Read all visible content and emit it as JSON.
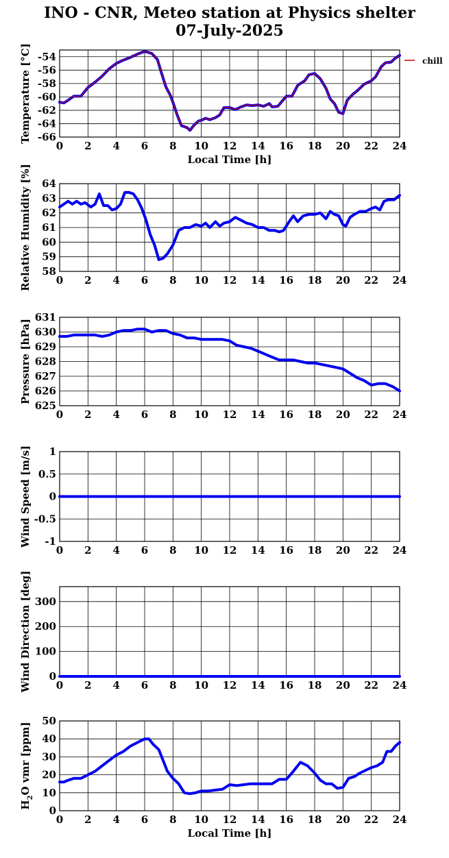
{
  "page": {
    "title_line1": "INO - CNR, Meteo station at Physics shelter",
    "title_line2": "07-July-2025"
  },
  "legend": {
    "label": "chill",
    "color": "#cc0000"
  },
  "colors": {
    "series": "#0000ee",
    "grid": "#000000"
  },
  "chart_data": [
    {
      "type": "line",
      "ylabel": "Temperature [°C]",
      "xlabel": "Local Time [h]",
      "xlim": [
        0,
        24
      ],
      "ylim": [
        -66,
        -53
      ],
      "xticks": [
        0,
        2,
        4,
        6,
        8,
        10,
        12,
        14,
        16,
        18,
        20,
        22,
        24
      ],
      "yticks": [
        -66,
        -64,
        -62,
        -60,
        -58,
        -56,
        -54
      ],
      "series": [
        {
          "x": [
            0,
            0.3,
            0.6,
            1,
            1.5,
            2,
            2.5,
            3,
            3.5,
            4,
            4.5,
            5,
            5.5,
            6,
            6.5,
            6.9,
            7.2,
            7.5,
            7.8,
            8,
            8.3,
            8.6,
            9,
            9.2,
            9.5,
            9.8,
            10,
            10.3,
            10.6,
            11,
            11.3,
            11.6,
            12,
            12.4,
            12.8,
            13.2,
            13.6,
            14,
            14.4,
            14.8,
            15,
            15.4,
            15.8,
            16,
            16.4,
            16.8,
            17,
            17.3,
            17.6,
            18,
            18.4,
            18.8,
            19.1,
            19.4,
            19.7,
            20,
            20.3,
            20.7,
            21,
            21.5,
            22,
            22.3,
            22.7,
            23,
            23.4,
            23.7,
            24
          ],
          "y": [
            -60.8,
            -60.9,
            -60.5,
            -59.9,
            -59.9,
            -58.6,
            -57.8,
            -56.9,
            -55.8,
            -55,
            -54.5,
            -54.1,
            -53.6,
            -53.2,
            -53.5,
            -54.4,
            -56.5,
            -58.5,
            -59.7,
            -60.8,
            -62.7,
            -64.3,
            -64.6,
            -65,
            -64.2,
            -63.6,
            -63.5,
            -63.2,
            -63.4,
            -63.1,
            -62.7,
            -61.6,
            -61.6,
            -61.9,
            -61.5,
            -61.2,
            -61.3,
            -61.2,
            -61.4,
            -61.0,
            -61.5,
            -61.4,
            -60.4,
            -59.9,
            -59.9,
            -58.3,
            -58,
            -57.6,
            -56.7,
            -56.5,
            -57.3,
            -58.7,
            -60.3,
            -61,
            -62.3,
            -62.5,
            -60.5,
            -59.6,
            -59.1,
            -58.1,
            -57.6,
            -57.0,
            -55.5,
            -54.9,
            -54.8,
            -54.2,
            -53.8
          ]
        }
      ]
    },
    {
      "type": "line",
      "ylabel": "Relative Humidity [%]",
      "xlabel": "",
      "xlim": [
        0,
        24
      ],
      "ylim": [
        58,
        64
      ],
      "xticks": [
        0,
        2,
        4,
        6,
        8,
        10,
        12,
        14,
        16,
        18,
        20,
        22,
        24
      ],
      "yticks": [
        58,
        59,
        60,
        61,
        62,
        63,
        64
      ],
      "series": [
        {
          "x": [
            0,
            0.3,
            0.6,
            0.9,
            1.2,
            1.5,
            1.8,
            2.2,
            2.5,
            2.8,
            3.1,
            3.4,
            3.7,
            4,
            4.3,
            4.6,
            4.9,
            5.2,
            5.5,
            5.8,
            6.1,
            6.4,
            6.7,
            7,
            7.3,
            7.6,
            8,
            8.4,
            8.8,
            9.2,
            9.6,
            10,
            10.3,
            10.6,
            11,
            11.3,
            11.6,
            12,
            12.4,
            12.8,
            13.2,
            13.6,
            14,
            14.4,
            14.8,
            15.2,
            15.5,
            15.8,
            16.2,
            16.5,
            16.8,
            17.2,
            17.6,
            18,
            18.4,
            18.8,
            19.1,
            19.4,
            19.7,
            20,
            20.2,
            20.5,
            20.8,
            21.2,
            21.6,
            22,
            22.3,
            22.6,
            22.9,
            23.2,
            23.6,
            24
          ],
          "y": [
            62.4,
            62.6,
            62.8,
            62.6,
            62.8,
            62.6,
            62.7,
            62.4,
            62.6,
            63.3,
            62.5,
            62.5,
            62.2,
            62.3,
            62.6,
            63.4,
            63.4,
            63.3,
            62.9,
            62.3,
            61.5,
            60.5,
            59.8,
            58.8,
            58.9,
            59.2,
            59.8,
            60.8,
            61,
            61,
            61.2,
            61.1,
            61.3,
            61,
            61.4,
            61.1,
            61.3,
            61.4,
            61.7,
            61.5,
            61.3,
            61.2,
            61,
            61,
            60.8,
            60.8,
            60.7,
            60.8,
            61.4,
            61.8,
            61.4,
            61.8,
            61.9,
            61.9,
            62,
            61.6,
            62.1,
            61.9,
            61.8,
            61.2,
            61.1,
            61.7,
            61.9,
            62.1,
            62.1,
            62.3,
            62.4,
            62.2,
            62.8,
            62.9,
            62.9,
            63.2
          ]
        }
      ]
    },
    {
      "type": "line",
      "ylabel": "Pressure [hPa]",
      "xlabel": "",
      "xlim": [
        0,
        24
      ],
      "ylim": [
        625,
        631
      ],
      "xticks": [
        0,
        2,
        4,
        6,
        8,
        10,
        12,
        14,
        16,
        18,
        20,
        22,
        24
      ],
      "yticks": [
        625,
        626,
        627,
        628,
        629,
        630,
        631
      ],
      "series": [
        {
          "x": [
            0,
            0.5,
            1,
            1.5,
            2,
            2.5,
            3,
            3.5,
            4,
            4.5,
            5,
            5.5,
            6,
            6.5,
            7,
            7.5,
            8,
            8.5,
            9,
            9.5,
            10,
            10.5,
            11,
            11.5,
            12,
            12.5,
            13,
            13.5,
            14,
            14.5,
            15,
            15.5,
            16,
            16.5,
            17,
            17.5,
            18,
            18.5,
            19,
            19.5,
            20,
            20.5,
            21,
            21.5,
            22,
            22.5,
            23,
            23.5,
            24
          ],
          "y": [
            629.7,
            629.7,
            629.8,
            629.8,
            629.8,
            629.8,
            629.7,
            629.8,
            630,
            630.1,
            630.1,
            630.2,
            630.2,
            630,
            630.1,
            630.1,
            629.9,
            629.8,
            629.6,
            629.6,
            629.5,
            629.5,
            629.5,
            629.5,
            629.4,
            629.1,
            629,
            628.9,
            628.7,
            628.5,
            628.3,
            628.1,
            628.1,
            628.1,
            628,
            627.9,
            627.9,
            627.8,
            627.7,
            627.6,
            627.5,
            627.2,
            626.9,
            626.7,
            626.4,
            626.5,
            626.5,
            626.3,
            626
          ]
        }
      ]
    },
    {
      "type": "line",
      "ylabel": "Wind Speed [m/s]",
      "xlabel": "",
      "xlim": [
        0,
        24
      ],
      "ylim": [
        -1,
        1
      ],
      "xticks": [
        0,
        2,
        4,
        6,
        8,
        10,
        12,
        14,
        16,
        18,
        20,
        22,
        24
      ],
      "yticks": [
        -1,
        -0.5,
        0,
        0.5,
        1
      ],
      "series": [
        {
          "x": [
            0,
            24
          ],
          "y": [
            0,
            0
          ]
        }
      ]
    },
    {
      "type": "line",
      "ylabel": "Wind Direction [deg]",
      "xlabel": "",
      "xlim": [
        0,
        24
      ],
      "ylim": [
        0,
        360
      ],
      "xticks": [
        0,
        2,
        4,
        6,
        8,
        10,
        12,
        14,
        16,
        18,
        20,
        22,
        24
      ],
      "yticks": [
        0,
        100,
        200,
        300
      ],
      "series": [
        {
          "x": [
            0,
            24
          ],
          "y": [
            0,
            0
          ]
        }
      ]
    },
    {
      "type": "line",
      "ylabel": "H2O vmr [ppm]",
      "xlabel": "Local Time [h]",
      "xlim": [
        0,
        24
      ],
      "ylim": [
        0,
        50
      ],
      "xticks": [
        0,
        2,
        4,
        6,
        8,
        10,
        12,
        14,
        16,
        18,
        20,
        22,
        24
      ],
      "yticks": [
        0,
        10,
        20,
        30,
        40,
        50
      ],
      "series": [
        {
          "x": [
            0,
            0.3,
            0.6,
            1,
            1.5,
            2,
            2.5,
            3,
            3.5,
            4,
            4.5,
            5,
            5.5,
            6,
            6.3,
            6.6,
            7,
            7.3,
            7.6,
            8,
            8.4,
            8.8,
            9.2,
            9.6,
            10,
            10.5,
            11,
            11.5,
            12,
            12.5,
            13,
            13.5,
            14,
            14.5,
            15,
            15.5,
            16,
            16.5,
            17,
            17.5,
            18,
            18.4,
            18.8,
            19.2,
            19.6,
            20,
            20.4,
            20.8,
            21.2,
            21.6,
            22,
            22.4,
            22.8,
            23.1,
            23.4,
            23.7,
            24
          ],
          "y": [
            16,
            16,
            17,
            18,
            18,
            20,
            22,
            25,
            28,
            31,
            33,
            36,
            38,
            40,
            40,
            37,
            34,
            28,
            22,
            18,
            15,
            10,
            9.5,
            10,
            11,
            11,
            11.5,
            12,
            14.5,
            14,
            14.5,
            15,
            15,
            15,
            15,
            17.5,
            17.5,
            22,
            27,
            25,
            21,
            17,
            15,
            15,
            12.5,
            13,
            18,
            19,
            21,
            22.5,
            24,
            25,
            27,
            33,
            33,
            36,
            38
          ]
        }
      ]
    }
  ]
}
